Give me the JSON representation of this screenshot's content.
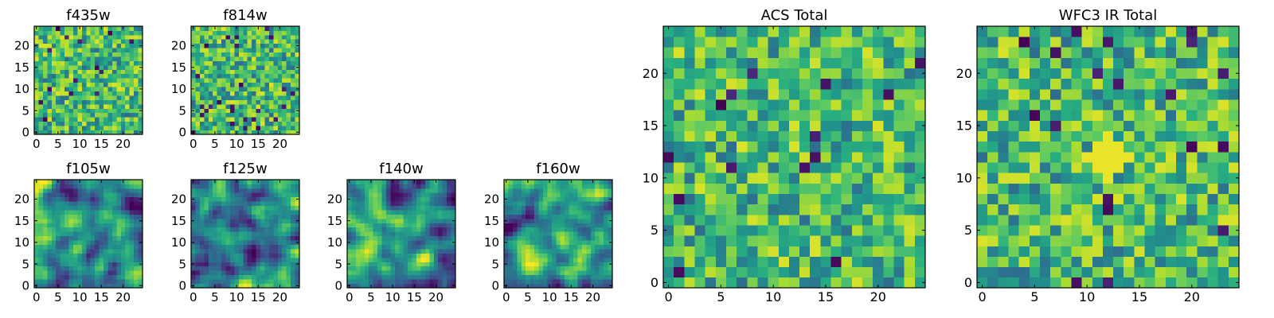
{
  "chart_data": [
    {
      "type": "heatmap",
      "title": "f435w",
      "x_ticks": [
        "0",
        "5",
        "10",
        "15",
        "20"
      ],
      "y_ticks": [
        "0",
        "5",
        "10",
        "15",
        "20"
      ],
      "xlim": [
        -0.5,
        24.5
      ],
      "ylim": [
        -0.5,
        24.5
      ],
      "grid_size": 25,
      "colormap": "viridis",
      "texture": "pixel",
      "seed": 11,
      "hot_spots": []
    },
    {
      "type": "heatmap",
      "title": "f814w",
      "x_ticks": [
        "0",
        "5",
        "10",
        "15",
        "20"
      ],
      "y_ticks": [
        "0",
        "5",
        "10",
        "15",
        "20"
      ],
      "xlim": [
        -0.5,
        24.5
      ],
      "ylim": [
        -0.5,
        24.5
      ],
      "grid_size": 25,
      "colormap": "viridis",
      "texture": "pixel",
      "seed": 23,
      "hot_spots": []
    },
    {
      "type": "heatmap",
      "title": "f105w",
      "x_ticks": [
        "0",
        "5",
        "10",
        "15",
        "20"
      ],
      "y_ticks": [
        "0",
        "5",
        "10",
        "15",
        "20"
      ],
      "xlim": [
        -0.5,
        24.5
      ],
      "ylim": [
        -0.5,
        24.5
      ],
      "grid_size": 25,
      "colormap": "viridis",
      "texture": "smooth",
      "seed": 37,
      "hot_spots": []
    },
    {
      "type": "heatmap",
      "title": "f125w",
      "x_ticks": [
        "0",
        "5",
        "10",
        "15",
        "20"
      ],
      "y_ticks": [
        "0",
        "5",
        "10",
        "15",
        "20"
      ],
      "xlim": [
        -0.5,
        24.5
      ],
      "ylim": [
        -0.5,
        24.5
      ],
      "grid_size": 25,
      "colormap": "viridis",
      "texture": "smooth",
      "seed": 41,
      "hot_spots": []
    },
    {
      "type": "heatmap",
      "title": "f140w",
      "x_ticks": [
        "0",
        "5",
        "10",
        "15",
        "20"
      ],
      "y_ticks": [
        "0",
        "5",
        "10",
        "15",
        "20"
      ],
      "xlim": [
        -0.5,
        24.5
      ],
      "ylim": [
        -0.5,
        24.5
      ],
      "grid_size": 25,
      "colormap": "viridis",
      "texture": "smooth",
      "seed": 53,
      "hot_spots": []
    },
    {
      "type": "heatmap",
      "title": "f160w",
      "x_ticks": [
        "0",
        "5",
        "10",
        "15",
        "20"
      ],
      "y_ticks": [
        "0",
        "5",
        "10",
        "15",
        "20"
      ],
      "xlim": [
        -0.5,
        24.5
      ],
      "ylim": [
        -0.5,
        24.5
      ],
      "grid_size": 25,
      "colormap": "viridis",
      "texture": "smooth",
      "seed": 67,
      "hot_spots": []
    },
    {
      "type": "heatmap",
      "title": "ACS Total",
      "x_ticks": [
        "0",
        "5",
        "10",
        "15",
        "20"
      ],
      "y_ticks": [
        "0",
        "5",
        "10",
        "15",
        "20"
      ],
      "xlim": [
        -0.5,
        24.5
      ],
      "ylim": [
        -0.5,
        24.5
      ],
      "grid_size": 25,
      "colormap": "viridis",
      "texture": "pixel",
      "seed": 79,
      "hot_spots": []
    },
    {
      "type": "heatmap",
      "title": "WFC3 IR Total",
      "x_ticks": [
        "0",
        "5",
        "10",
        "15",
        "20"
      ],
      "y_ticks": [
        "0",
        "5",
        "10",
        "15",
        "20"
      ],
      "xlim": [
        -0.5,
        24.5
      ],
      "ylim": [
        -0.5,
        24.5
      ],
      "grid_size": 25,
      "colormap": "viridis",
      "texture": "pixel",
      "seed": 97,
      "hot_spots": [
        {
          "x": 12,
          "y": 12,
          "radius": 2.2
        }
      ]
    }
  ]
}
